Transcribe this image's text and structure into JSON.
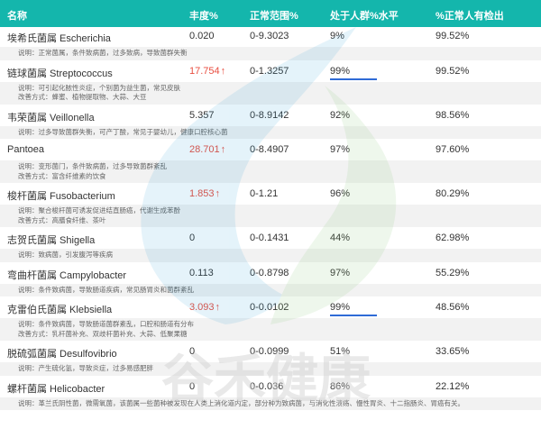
{
  "header": {
    "name": "名称",
    "abundance": "丰度%",
    "range": "正常范围%",
    "population": "处于人群%水平",
    "normal_detected": "%正常人有检出"
  },
  "rows": [
    {
      "name": "埃希氏菌属 Escherichia",
      "abundance": "0.020",
      "high": false,
      "range": "0-9.3023",
      "population": "9%",
      "underline": false,
      "normal_detected": "99.52%",
      "notes": [
        "说明：正常菌属，条件致病菌，过多致病，导致菌群失衡"
      ]
    },
    {
      "name": "链球菌属 Streptococcus",
      "abundance": "17.754",
      "high": true,
      "range": "0-1.3257",
      "population": "99%",
      "underline": true,
      "normal_detected": "99.52%",
      "notes": [
        "说明：可引起化脓性炎症，个别菌为益生菌，常见皮肤",
        "改善方式：蜂蜜、植物提取物、大蒜、大豆"
      ]
    },
    {
      "name": "韦荣菌属 Veillonella",
      "abundance": "5.357",
      "high": false,
      "range": "0-8.9142",
      "population": "92%",
      "underline": false,
      "normal_detected": "98.56%",
      "notes": [
        "说明：过多导致菌群失衡，可产丁酸，常见于婴幼儿，健康口腔核心菌"
      ]
    },
    {
      "name": "Pantoea",
      "abundance": "28.701",
      "high": true,
      "range": "0-8.4907",
      "population": "97%",
      "underline": false,
      "normal_detected": "97.60%",
      "notes": [
        "说明：变形菌门，条件致病菌，过多导致菌群紊乱",
        "改善方式：富含纤维素的饮食"
      ]
    },
    {
      "name": "梭杆菌属 Fusobacterium",
      "abundance": "1.853",
      "high": true,
      "range": "0-1.21",
      "population": "96%",
      "underline": false,
      "normal_detected": "80.29%",
      "notes": [
        "说明：聚合梭杆菌可诱发促进结直肠癌，代谢生成苯酚",
        "改善方式：高膳食纤维、茶叶"
      ]
    },
    {
      "name": "志贺氏菌属 Shigella",
      "abundance": "0",
      "high": false,
      "range": "0-0.1431",
      "population": "44%",
      "underline": false,
      "normal_detected": "62.98%",
      "notes": [
        "说明：致病菌，引发腹泻等疾病"
      ]
    },
    {
      "name": "弯曲杆菌属 Campylobacter",
      "abundance": "0.113",
      "high": false,
      "range": "0-0.8798",
      "population": "97%",
      "underline": false,
      "normal_detected": "55.29%",
      "notes": [
        "说明：条件致病菌，导致肠道疾病，常见肠胃炎和菌群紊乱"
      ]
    },
    {
      "name": "克雷伯氏菌属 Klebsiella",
      "abundance": "3.093",
      "high": true,
      "range": "0-0.0102",
      "population": "99%",
      "underline": true,
      "normal_detected": "48.56%",
      "notes": [
        "说明：条件致病菌，导致肠道菌群紊乱，口腔和肠道有分布",
        "改善方式：乳杆菌补充、双歧杆菌补充、大蒜、低聚果糖"
      ]
    },
    {
      "name": "脱硫弧菌属 Desulfovibrio",
      "abundance": "0",
      "high": false,
      "range": "0-0.0999",
      "population": "51%",
      "underline": false,
      "normal_detected": "33.65%",
      "notes": [
        "说明：产生硫化氢，导致炎症，过多易感肥胖"
      ]
    },
    {
      "name": "螺杆菌属 Helicobacter",
      "abundance": "0",
      "high": false,
      "range": "0-0.036",
      "population": "86%",
      "underline": false,
      "normal_detected": "22.12%",
      "notes": [
        "说明：革兰氏阴性菌，微需氧菌，该菌属一些菌种被发现在人类上消化道内定，部分种为致病菌，与消化性溃疡、慢性胃炎、十二指肠炎、胃癌有关。"
      ]
    }
  ],
  "watermark_text": "谷禾健康",
  "colors": {
    "header_bg": "#14b6ac",
    "high": "#e84e40",
    "underline": "#2f6bd6"
  }
}
